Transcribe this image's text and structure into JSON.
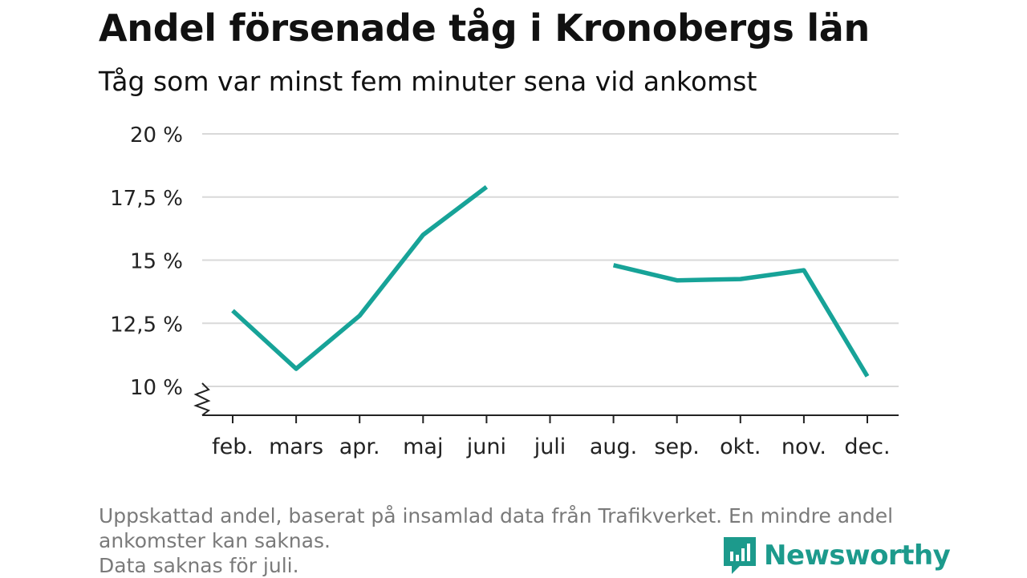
{
  "title": "Andel försenade tåg i Kronobergs län",
  "subtitle": "Tåg som var minst fem minuter sena vid ankomst",
  "footnote": {
    "line1": "Uppskattad andel, baserat på insamlad data från Trafikverket. En mindre andel",
    "line2": "ankomster kan saknas.",
    "line3": "Data saknas för juli."
  },
  "brand": {
    "name": "Newsworthy",
    "icon": "newsworthy-logo-icon",
    "color": "#1c9a8c"
  },
  "chart_data": {
    "type": "line",
    "categories": [
      "feb.",
      "mars",
      "apr.",
      "maj",
      "juni",
      "juli",
      "aug.",
      "sep.",
      "okt.",
      "nov.",
      "dec."
    ],
    "series": [
      {
        "values": [
          13.0,
          10.7,
          12.8,
          16.0,
          17.9,
          null,
          14.8,
          14.2,
          14.25,
          14.6,
          10.4
        ],
        "color": "#17a398"
      }
    ],
    "yticks": [
      10,
      12.5,
      15,
      17.5,
      20
    ],
    "ytick_labels": [
      "10 %",
      "12,5 %",
      "15 %",
      "17,5 %",
      "20 %"
    ],
    "ylim": [
      9,
      20
    ],
    "axis_break": true,
    "grid": true,
    "xlabel": "",
    "ylabel": ""
  }
}
